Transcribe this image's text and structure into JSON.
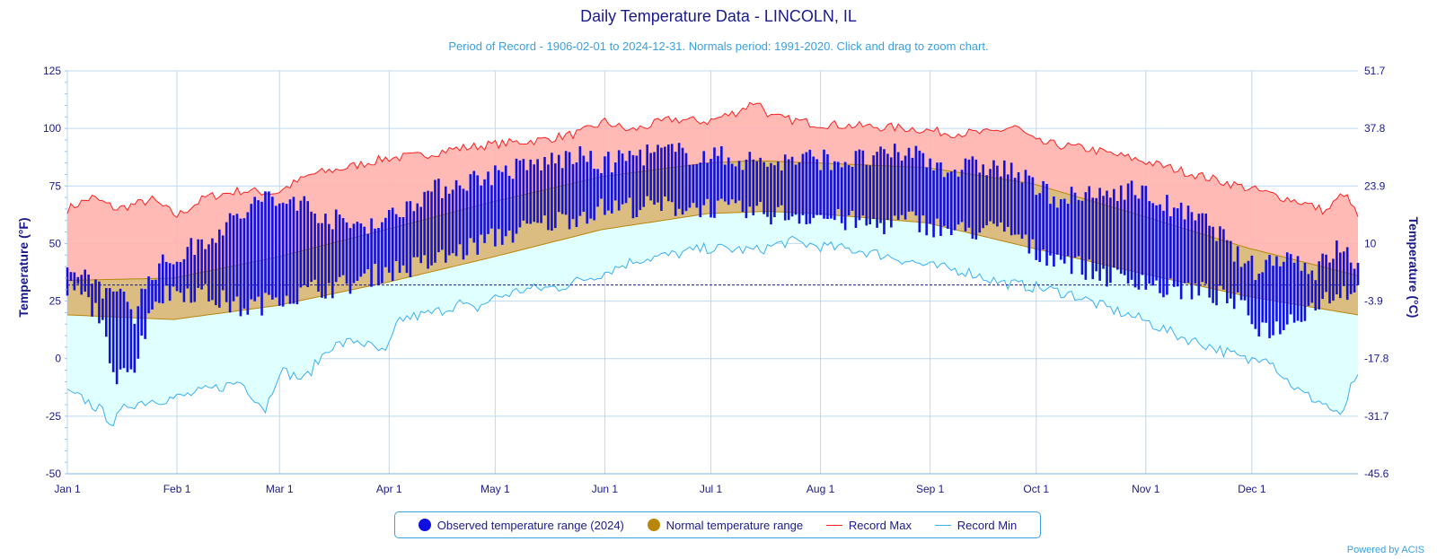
{
  "chart": {
    "title": "Daily Temperature Data - LINCOLN, IL",
    "subtitle": "Period of Record - 1906-02-01 to 2024-12-31. Normals period: 1991-2020. Click and drag to zoom chart.",
    "powered_by": "Powered by ACIS"
  },
  "legend": {
    "observed": "Observed temperature range (2024)",
    "normal": "Normal temperature range",
    "record_max": "Record Max",
    "record_min": "Record Min"
  },
  "colors": {
    "observed": "#1010e0",
    "normal_fill": "#d9b97a",
    "normal_line": "#b8860b",
    "record_max_line": "#ff2020",
    "record_max_fill": "#ffb3ae",
    "record_min_line": "#3ab0f0",
    "record_min_fill": "#e0ffff",
    "axis_text": "#1a1a8c",
    "grid": "#bcd9f0",
    "freezing_line": "#1a1a8c"
  },
  "chart_data": {
    "type": "area",
    "title": "Daily Temperature Data - LINCOLN, IL",
    "xlabel": "",
    "ylabel": "Temperature (°F)",
    "y2label": "Temperature (°C)",
    "ylim": [
      -50,
      125
    ],
    "yticks": [
      -50,
      -25,
      0,
      25,
      50,
      75,
      100,
      125
    ],
    "y2ticks": [
      "-45.6",
      "-31.7",
      "-17.8",
      "-3.9",
      "10",
      "23.9",
      "37.8",
      "51.7"
    ],
    "xlim_days": [
      1,
      366
    ],
    "month_labels": [
      "Jan 1",
      "Feb 1",
      "Mar 1",
      "Apr 1",
      "May 1",
      "Jun 1",
      "Jul 1",
      "Aug 1",
      "Sep 1",
      "Oct 1",
      "Nov 1",
      "Dec 1"
    ],
    "month_start_days": [
      1,
      32,
      61,
      92,
      122,
      153,
      183,
      214,
      245,
      275,
      306,
      336
    ],
    "freezing_line_f": 32,
    "normal_max_keypoints": [
      [
        1,
        34
      ],
      [
        31,
        35
      ],
      [
        60,
        44
      ],
      [
        91,
        56
      ],
      [
        121,
        68
      ],
      [
        152,
        79
      ],
      [
        182,
        85
      ],
      [
        196,
        86
      ],
      [
        213,
        85
      ],
      [
        244,
        83
      ],
      [
        274,
        76
      ],
      [
        305,
        62
      ],
      [
        335,
        48
      ],
      [
        366,
        36
      ]
    ],
    "normal_min_keypoints": [
      [
        1,
        19
      ],
      [
        31,
        17
      ],
      [
        60,
        23
      ],
      [
        91,
        33
      ],
      [
        121,
        44
      ],
      [
        152,
        56
      ],
      [
        182,
        63
      ],
      [
        199,
        64
      ],
      [
        213,
        63
      ],
      [
        244,
        59
      ],
      [
        274,
        48
      ],
      [
        305,
        37
      ],
      [
        335,
        27
      ],
      [
        366,
        19
      ]
    ],
    "record_max_keypoints": [
      [
        1,
        65
      ],
      [
        8,
        70
      ],
      [
        15,
        65
      ],
      [
        25,
        69
      ],
      [
        32,
        62
      ],
      [
        40,
        70
      ],
      [
        50,
        73
      ],
      [
        60,
        72
      ],
      [
        70,
        80
      ],
      [
        80,
        83
      ],
      [
        91,
        87
      ],
      [
        100,
        88
      ],
      [
        110,
        91
      ],
      [
        121,
        93
      ],
      [
        135,
        95
      ],
      [
        146,
        98
      ],
      [
        153,
        103
      ],
      [
        160,
        99
      ],
      [
        172,
        104
      ],
      [
        182,
        103
      ],
      [
        190,
        107
      ],
      [
        196,
        112
      ],
      [
        200,
        105
      ],
      [
        213,
        102
      ],
      [
        225,
        101
      ],
      [
        240,
        100
      ],
      [
        250,
        98
      ],
      [
        262,
        98
      ],
      [
        269,
        101
      ],
      [
        275,
        94
      ],
      [
        290,
        91
      ],
      [
        305,
        86
      ],
      [
        320,
        80
      ],
      [
        335,
        74
      ],
      [
        350,
        68
      ],
      [
        357,
        64
      ],
      [
        362,
        72
      ],
      [
        366,
        62
      ]
    ],
    "record_min_keypoints": [
      [
        1,
        -15
      ],
      [
        6,
        -18
      ],
      [
        10,
        -22
      ],
      [
        14,
        -28
      ],
      [
        18,
        -20
      ],
      [
        25,
        -18
      ],
      [
        32,
        -17
      ],
      [
        40,
        -14
      ],
      [
        50,
        -10
      ],
      [
        57,
        -22
      ],
      [
        61,
        -5
      ],
      [
        68,
        -9
      ],
      [
        75,
        5
      ],
      [
        83,
        8
      ],
      [
        91,
        2
      ],
      [
        95,
        17
      ],
      [
        105,
        20
      ],
      [
        112,
        24
      ],
      [
        116,
        21
      ],
      [
        121,
        26
      ],
      [
        130,
        30
      ],
      [
        140,
        31
      ],
      [
        152,
        37
      ],
      [
        162,
        43
      ],
      [
        172,
        45
      ],
      [
        182,
        48
      ],
      [
        196,
        47
      ],
      [
        205,
        51
      ],
      [
        213,
        49
      ],
      [
        225,
        47
      ],
      [
        235,
        44
      ],
      [
        245,
        40
      ],
      [
        255,
        38
      ],
      [
        265,
        33
      ],
      [
        275,
        31
      ],
      [
        285,
        28
      ],
      [
        295,
        22
      ],
      [
        305,
        17
      ],
      [
        315,
        10
      ],
      [
        325,
        5
      ],
      [
        335,
        -1
      ],
      [
        340,
        2
      ],
      [
        345,
        -8
      ],
      [
        350,
        -15
      ],
      [
        357,
        -20
      ],
      [
        361,
        -26
      ],
      [
        364,
        -13
      ],
      [
        366,
        -9
      ]
    ],
    "observed_2024_keypoints": [
      [
        1,
        30,
        35
      ],
      [
        5,
        28,
        37
      ],
      [
        10,
        20,
        33
      ],
      [
        14,
        -10,
        25
      ],
      [
        17,
        0,
        30
      ],
      [
        20,
        -5,
        20
      ],
      [
        25,
        25,
        38
      ],
      [
        32,
        30,
        44
      ],
      [
        40,
        28,
        52
      ],
      [
        50,
        22,
        62
      ],
      [
        57,
        24,
        71
      ],
      [
        60,
        28,
        66
      ],
      [
        65,
        27,
        70
      ],
      [
        70,
        30,
        65
      ],
      [
        80,
        32,
        58
      ],
      [
        91,
        38,
        60
      ],
      [
        100,
        40,
        70
      ],
      [
        110,
        45,
        76
      ],
      [
        121,
        52,
        80
      ],
      [
        135,
        58,
        85
      ],
      [
        145,
        62,
        88
      ],
      [
        152,
        65,
        84
      ],
      [
        160,
        66,
        88
      ],
      [
        170,
        66,
        90
      ],
      [
        182,
        66,
        88
      ],
      [
        190,
        64,
        87
      ],
      [
        200,
        63,
        85
      ],
      [
        213,
        62,
        87
      ],
      [
        220,
        60,
        86
      ],
      [
        230,
        58,
        87
      ],
      [
        240,
        60,
        90
      ],
      [
        245,
        58,
        86
      ],
      [
        252,
        55,
        82
      ],
      [
        260,
        56,
        84
      ],
      [
        268,
        55,
        82
      ],
      [
        275,
        46,
        74
      ],
      [
        282,
        44,
        70
      ],
      [
        290,
        38,
        70
      ],
      [
        300,
        34,
        74
      ],
      [
        305,
        35,
        72
      ],
      [
        310,
        30,
        68
      ],
      [
        318,
        30,
        62
      ],
      [
        325,
        28,
        58
      ],
      [
        332,
        24,
        44
      ],
      [
        338,
        14,
        38
      ],
      [
        343,
        13,
        45
      ],
      [
        348,
        18,
        44
      ],
      [
        354,
        24,
        38
      ],
      [
        360,
        29,
        48
      ],
      [
        364,
        30,
        44
      ],
      [
        366,
        31,
        40
      ]
    ]
  }
}
